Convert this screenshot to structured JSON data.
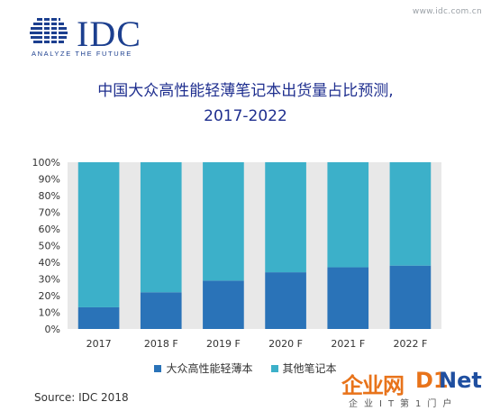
{
  "url_text": "www.idc.com.cn",
  "logo": {
    "name": "IDC",
    "tagline": "ANALYZE THE FUTURE"
  },
  "source": "Source: IDC 2018",
  "watermark": {
    "brand_cn": "企业网",
    "brand_mark": "D1",
    "brand_en": "Net",
    "subtitle": "企业IT第1门户"
  },
  "colors": {
    "series_0": "#2a73b8",
    "series_1": "#3cb0c9",
    "plot_bg": "#e8e8e8",
    "title": "#1f2f8f"
  },
  "chart_data": {
    "type": "bar",
    "stacked": true,
    "title_line1": "中国大众高性能轻薄笔记本出货量占比预测,",
    "title_line2": "2017-2022",
    "categories": [
      "2017",
      "2018 F",
      "2019 F",
      "2020 F",
      "2021 F",
      "2022 F"
    ],
    "series": [
      {
        "name": "大众高性能轻薄本",
        "values": [
          13,
          22,
          29,
          34,
          37,
          38
        ]
      },
      {
        "name": "其他笔记本",
        "values": [
          87,
          78,
          71,
          66,
          63,
          62
        ]
      }
    ],
    "ylim": [
      0,
      100
    ],
    "yticks": [
      "0%",
      "10%",
      "20%",
      "30%",
      "40%",
      "50%",
      "60%",
      "70%",
      "80%",
      "90%",
      "100%"
    ],
    "grid": false,
    "legend_position": "bottom"
  }
}
